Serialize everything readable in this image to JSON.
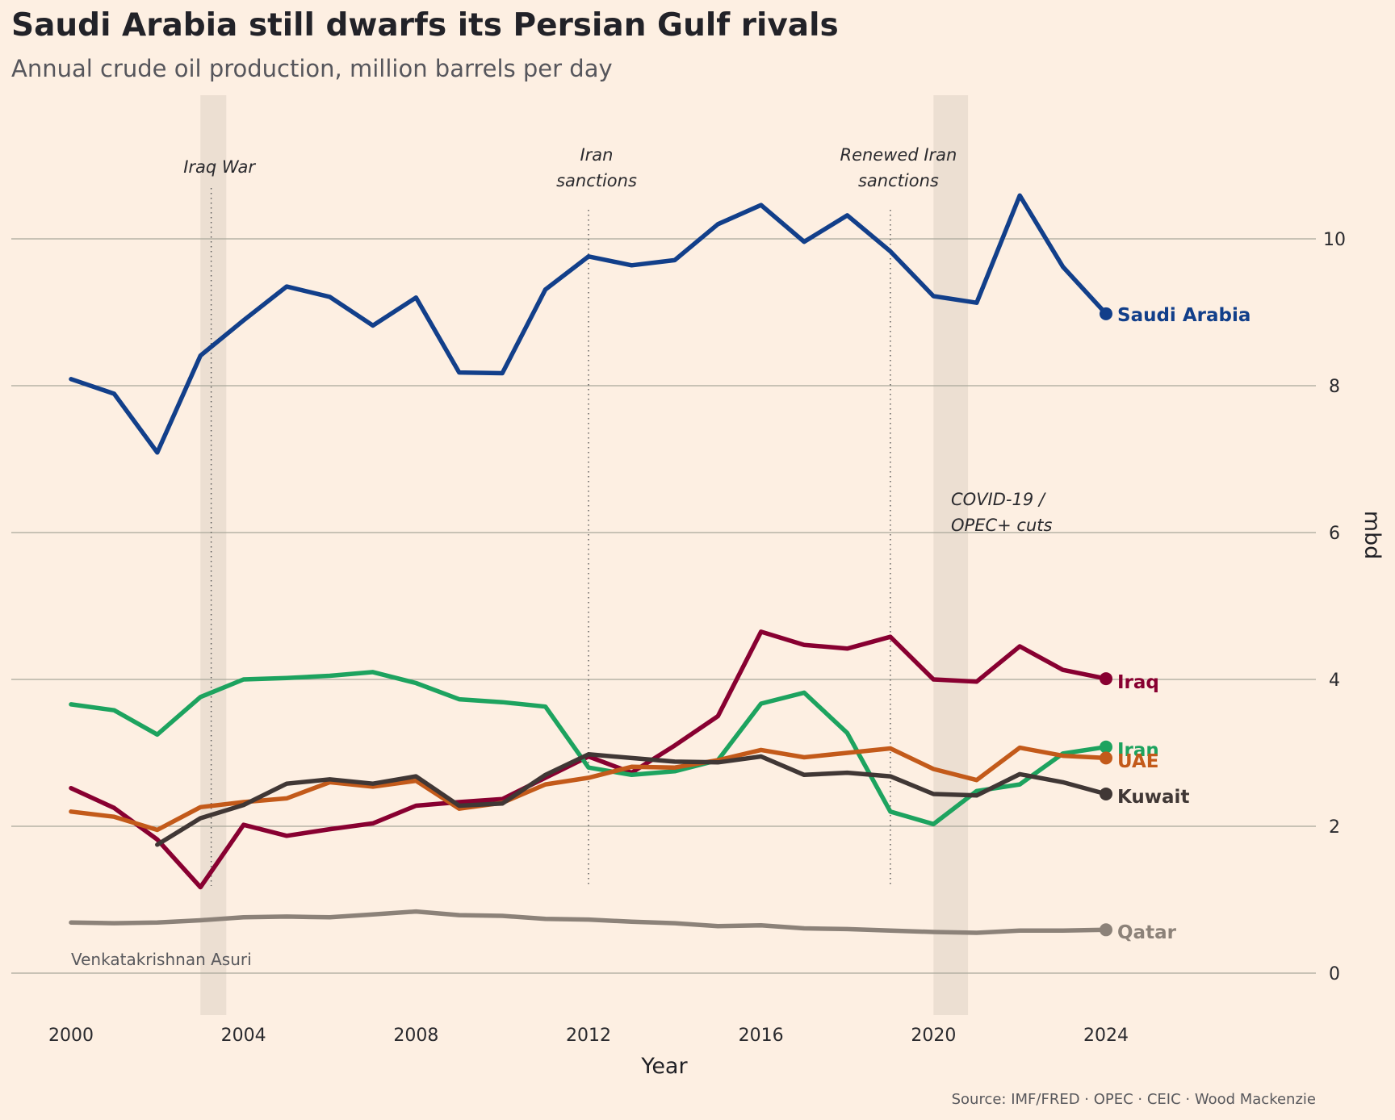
{
  "chart_data": {
    "type": "line",
    "title": "Saudi Arabia still dwarfs its Persian Gulf rivals",
    "subtitle": "Annual crude oil production, million barrels per day",
    "xlabel": "Year",
    "ylabel": "mbd",
    "xlim": [
      1999.3,
      2029.5
    ],
    "ylim": [
      -0.55,
      11.8
    ],
    "x_ticks": [
      2000,
      2004,
      2008,
      2012,
      2016,
      2020,
      2024
    ],
    "y_ticks": [
      0,
      2,
      4,
      6,
      8,
      10
    ],
    "grid": "horizontal",
    "legend": "direct labels at line ends",
    "series": [
      {
        "name": "Saudi Arabia",
        "color": "#123f8a",
        "x": [
          2000,
          2001,
          2002,
          2003,
          2004,
          2005,
          2006,
          2007,
          2008,
          2009,
          2010,
          2011,
          2012,
          2013,
          2014,
          2015,
          2016,
          2017,
          2018,
          2019,
          2020,
          2021,
          2022,
          2023,
          2024
        ],
        "values": [
          8.09,
          7.89,
          7.09,
          8.41,
          8.89,
          9.35,
          9.21,
          8.82,
          9.2,
          8.18,
          8.17,
          9.31,
          9.76,
          9.64,
          9.71,
          10.2,
          10.46,
          9.96,
          10.32,
          9.83,
          9.22,
          9.13,
          10.59,
          9.62,
          8.98
        ]
      },
      {
        "name": "Iraq",
        "color": "#880031",
        "x": [
          2000,
          2001,
          2002,
          2003,
          2004,
          2005,
          2006,
          2007,
          2008,
          2009,
          2010,
          2011,
          2012,
          2013,
          2014,
          2015,
          2016,
          2017,
          2018,
          2019,
          2020,
          2021,
          2022,
          2023,
          2024
        ],
        "values": [
          2.52,
          2.25,
          1.82,
          1.17,
          2.02,
          1.87,
          1.96,
          2.04,
          2.28,
          2.33,
          2.37,
          2.66,
          2.95,
          2.73,
          3.1,
          3.5,
          4.65,
          4.47,
          4.42,
          4.58,
          4.0,
          3.97,
          4.45,
          4.13,
          4.01
        ]
      },
      {
        "name": "Iran",
        "color": "#1da35f",
        "x": [
          2000,
          2001,
          2002,
          2003,
          2004,
          2005,
          2006,
          2007,
          2008,
          2009,
          2010,
          2011,
          2012,
          2013,
          2014,
          2015,
          2016,
          2017,
          2018,
          2019,
          2020,
          2021,
          2022,
          2023,
          2024
        ],
        "values": [
          3.66,
          3.58,
          3.25,
          3.76,
          4.0,
          4.02,
          4.05,
          4.1,
          3.95,
          3.73,
          3.69,
          3.63,
          2.8,
          2.7,
          2.75,
          2.9,
          3.67,
          3.82,
          3.27,
          2.2,
          2.03,
          2.48,
          2.57,
          2.99,
          3.08
        ]
      },
      {
        "name": "UAE",
        "color": "#c35a1a",
        "x": [
          2000,
          2001,
          2002,
          2003,
          2004,
          2005,
          2006,
          2007,
          2008,
          2009,
          2010,
          2011,
          2012,
          2013,
          2014,
          2015,
          2016,
          2017,
          2018,
          2019,
          2020,
          2021,
          2022,
          2023,
          2024
        ],
        "values": [
          2.2,
          2.13,
          1.95,
          2.26,
          2.33,
          2.38,
          2.6,
          2.54,
          2.62,
          2.24,
          2.32,
          2.57,
          2.66,
          2.81,
          2.8,
          2.9,
          3.04,
          2.94,
          3.0,
          3.06,
          2.78,
          2.63,
          3.07,
          2.96,
          2.93
        ]
      },
      {
        "name": "Kuwait",
        "color": "#403735",
        "x": [
          2002,
          2003,
          2004,
          2005,
          2006,
          2007,
          2008,
          2009,
          2010,
          2011,
          2012,
          2013,
          2014,
          2015,
          2016,
          2017,
          2018,
          2019,
          2020,
          2021,
          2022,
          2023,
          2024
        ],
        "values": [
          1.75,
          2.11,
          2.29,
          2.58,
          2.64,
          2.58,
          2.68,
          2.28,
          2.31,
          2.7,
          2.98,
          2.93,
          2.88,
          2.87,
          2.95,
          2.7,
          2.73,
          2.68,
          2.44,
          2.42,
          2.71,
          2.6,
          2.44
        ]
      },
      {
        "name": "Qatar",
        "color": "#8c8279",
        "x": [
          2000,
          2001,
          2002,
          2003,
          2004,
          2005,
          2006,
          2007,
          2008,
          2009,
          2010,
          2011,
          2012,
          2013,
          2014,
          2015,
          2016,
          2017,
          2018,
          2019,
          2020,
          2021,
          2022,
          2023,
          2024
        ],
        "values": [
          0.69,
          0.68,
          0.69,
          0.72,
          0.76,
          0.77,
          0.76,
          0.8,
          0.84,
          0.79,
          0.78,
          0.74,
          0.73,
          0.7,
          0.68,
          0.64,
          0.65,
          0.61,
          0.6,
          0.58,
          0.56,
          0.55,
          0.58,
          0.58,
          0.59
        ]
      }
    ],
    "shaded_periods": [
      {
        "start": 2003,
        "end": 2003.6
      },
      {
        "start": 2020,
        "end": 2020.8,
        "label": "COVID-19 / OPEC+ cuts"
      }
    ],
    "events": [
      {
        "x": 2003.25,
        "label": "Iraq War"
      },
      {
        "x": 2012,
        "label": "Iran sanctions"
      },
      {
        "x": 2019,
        "label": "Renewed Iran sanctions"
      }
    ],
    "credit": "Venkatakrishnan Asuri",
    "source": "Source: IMF/FRED · OPEC · CEIC · Wood Mackenzie"
  }
}
